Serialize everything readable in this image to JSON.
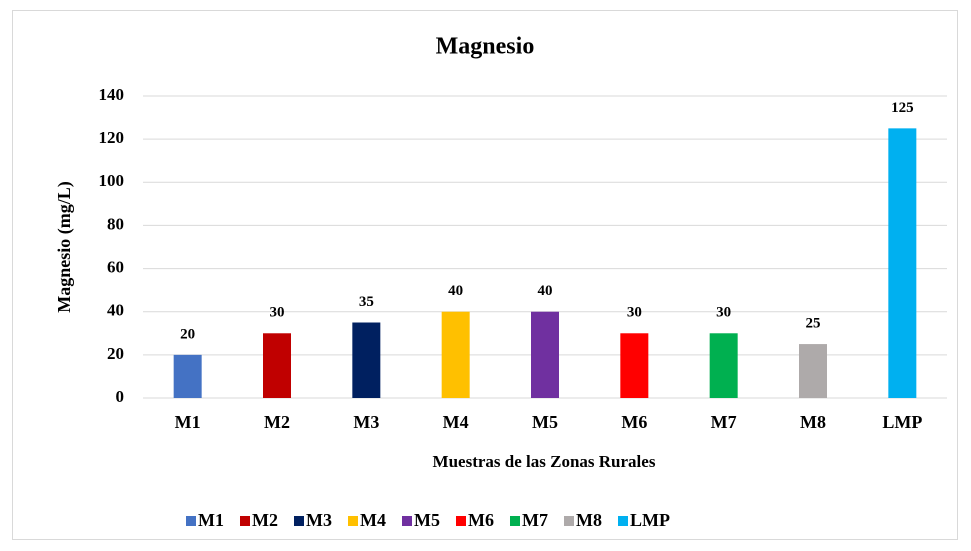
{
  "chart_data": {
    "type": "bar",
    "title": "Magnesio",
    "y_label": "Magnesio (mg/L)",
    "x_label": "Muestras de las Zonas Rurales",
    "categories": [
      "M1",
      "M2",
      "M3",
      "M4",
      "M5",
      "M6",
      "M7",
      "M8",
      "LMP"
    ],
    "values": [
      20,
      30,
      35,
      40,
      40,
      30,
      30,
      25,
      125
    ],
    "colors": [
      "#4472c4",
      "#c00000",
      "#002060",
      "#ffc000",
      "#7030a0",
      "#ff0000",
      "#00b050",
      "#aeaaaa",
      "#00b0f0"
    ],
    "ylim": [
      0,
      140
    ],
    "yticks": [
      0,
      20,
      40,
      60,
      80,
      100,
      120,
      140
    ],
    "grid": true,
    "legend": "bottom"
  }
}
